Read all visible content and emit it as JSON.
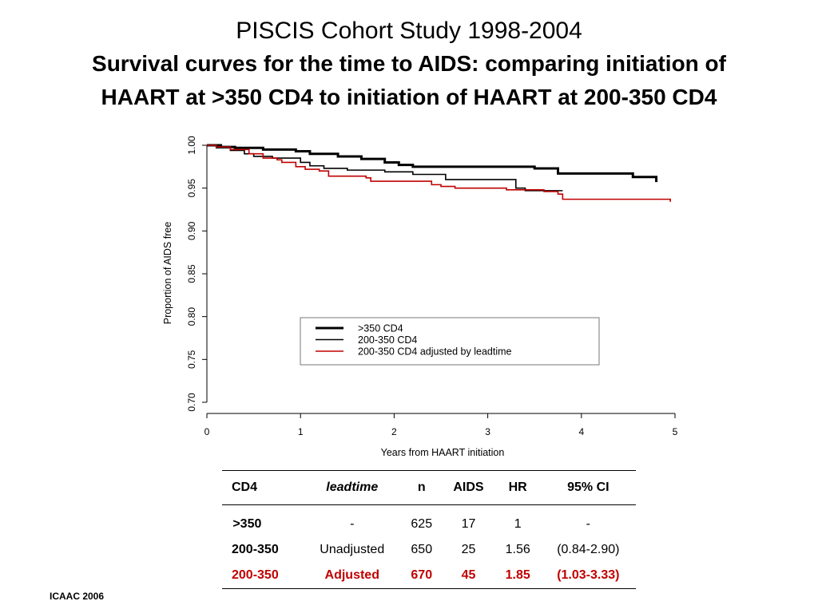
{
  "titles": {
    "line1": "PISCIS Cohort Study 1998-2004",
    "line2": "Survival curves for the time to AIDS: comparing initiation of",
    "line3": "HAART at >350 CD4 to initiation of HAART at 200-350 CD4"
  },
  "chart_data": {
    "type": "line",
    "step": true,
    "xlabel": "Years from HAART initiation",
    "ylabel": "Proportion of AIDS free",
    "xlim": [
      0,
      5
    ],
    "ylim": [
      0.7,
      1.0
    ],
    "xticks": [
      "0",
      "1",
      "2",
      "3",
      "4",
      "5"
    ],
    "yticks": [
      "0.70",
      "0.75",
      "0.80",
      "0.85",
      "0.90",
      "0.95",
      "1.00"
    ],
    "grid": false,
    "legend_position": "bottom-right",
    "series": [
      {
        "name": ">350 CD4",
        "color": "#000000",
        "style": "thick",
        "x": [
          0,
          0.15,
          0.3,
          0.6,
          0.95,
          1.1,
          1.4,
          1.65,
          1.9,
          2.05,
          2.2,
          3.5,
          3.75,
          4.55,
          4.8
        ],
        "y": [
          1.0,
          0.998,
          0.997,
          0.995,
          0.993,
          0.99,
          0.987,
          0.984,
          0.98,
          0.977,
          0.975,
          0.973,
          0.967,
          0.963,
          0.957
        ]
      },
      {
        "name": "200-350 CD4",
        "color": "#000000",
        "style": "thin",
        "x": [
          0,
          0.1,
          0.25,
          0.4,
          0.5,
          0.7,
          1.0,
          1.1,
          1.25,
          1.5,
          1.9,
          2.2,
          2.55,
          3.3,
          3.4,
          3.8
        ],
        "y": [
          1.0,
          0.997,
          0.994,
          0.99,
          0.987,
          0.985,
          0.98,
          0.976,
          0.973,
          0.971,
          0.969,
          0.966,
          0.96,
          0.95,
          0.947,
          0.947
        ]
      },
      {
        "name": "200-350 CD4 adjusted by leadtime",
        "color": "#c00000",
        "style": "thin",
        "x": [
          0,
          0.1,
          0.25,
          0.45,
          0.6,
          0.75,
          0.8,
          0.95,
          1.05,
          1.2,
          1.3,
          1.7,
          1.75,
          2.4,
          2.5,
          2.65,
          2.8,
          3.2,
          3.6,
          3.75,
          3.8,
          4.95
        ],
        "y": [
          1.0,
          0.998,
          0.995,
          0.99,
          0.985,
          0.983,
          0.98,
          0.975,
          0.972,
          0.97,
          0.964,
          0.962,
          0.958,
          0.954,
          0.952,
          0.95,
          0.95,
          0.948,
          0.946,
          0.943,
          0.937,
          0.934
        ]
      }
    ]
  },
  "table": {
    "headers": [
      "CD4",
      "leadtime",
      "n",
      "AIDS",
      "HR",
      "95% CI"
    ],
    "rows": [
      [
        " >350",
        "-",
        "625",
        "17",
        "1",
        "-"
      ],
      [
        "200-350",
        "Unadjusted",
        "650",
        "25",
        "1.56",
        "(0.84-2.90)"
      ],
      [
        "200-350",
        "Adjusted",
        "670",
        "45",
        "1.85",
        "(1.03-3.33)"
      ]
    ],
    "highlight_color": "#c00000"
  },
  "footer": "ICAAC 2006"
}
